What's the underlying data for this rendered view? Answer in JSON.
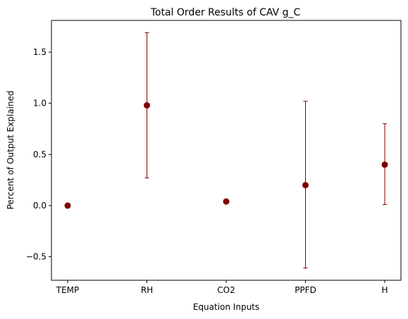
{
  "chart_data": {
    "type": "scatter",
    "title": "Total Order Results of CAV g_C",
    "xlabel": "Equation Inputs",
    "ylabel": "Percent of Output Explained",
    "categories": [
      "TEMP",
      "RH",
      "CO2",
      "PPFD",
      "H"
    ],
    "values": [
      0.0,
      0.98,
      0.04,
      0.2,
      0.4
    ],
    "error_low": [
      0.0,
      0.27,
      0.04,
      -0.61,
      0.01
    ],
    "error_high": [
      0.0,
      1.69,
      0.04,
      1.02,
      0.8
    ],
    "ylim": [
      -0.73,
      1.81
    ],
    "yticks": [
      -0.5,
      0.0,
      0.5,
      1.0,
      1.5
    ],
    "ytick_labels": [
      "−0.5",
      "0.0",
      "0.5",
      "1.0",
      "1.5"
    ],
    "grid": false,
    "marker_color": "#800000",
    "errorbar_color": "#800000"
  }
}
